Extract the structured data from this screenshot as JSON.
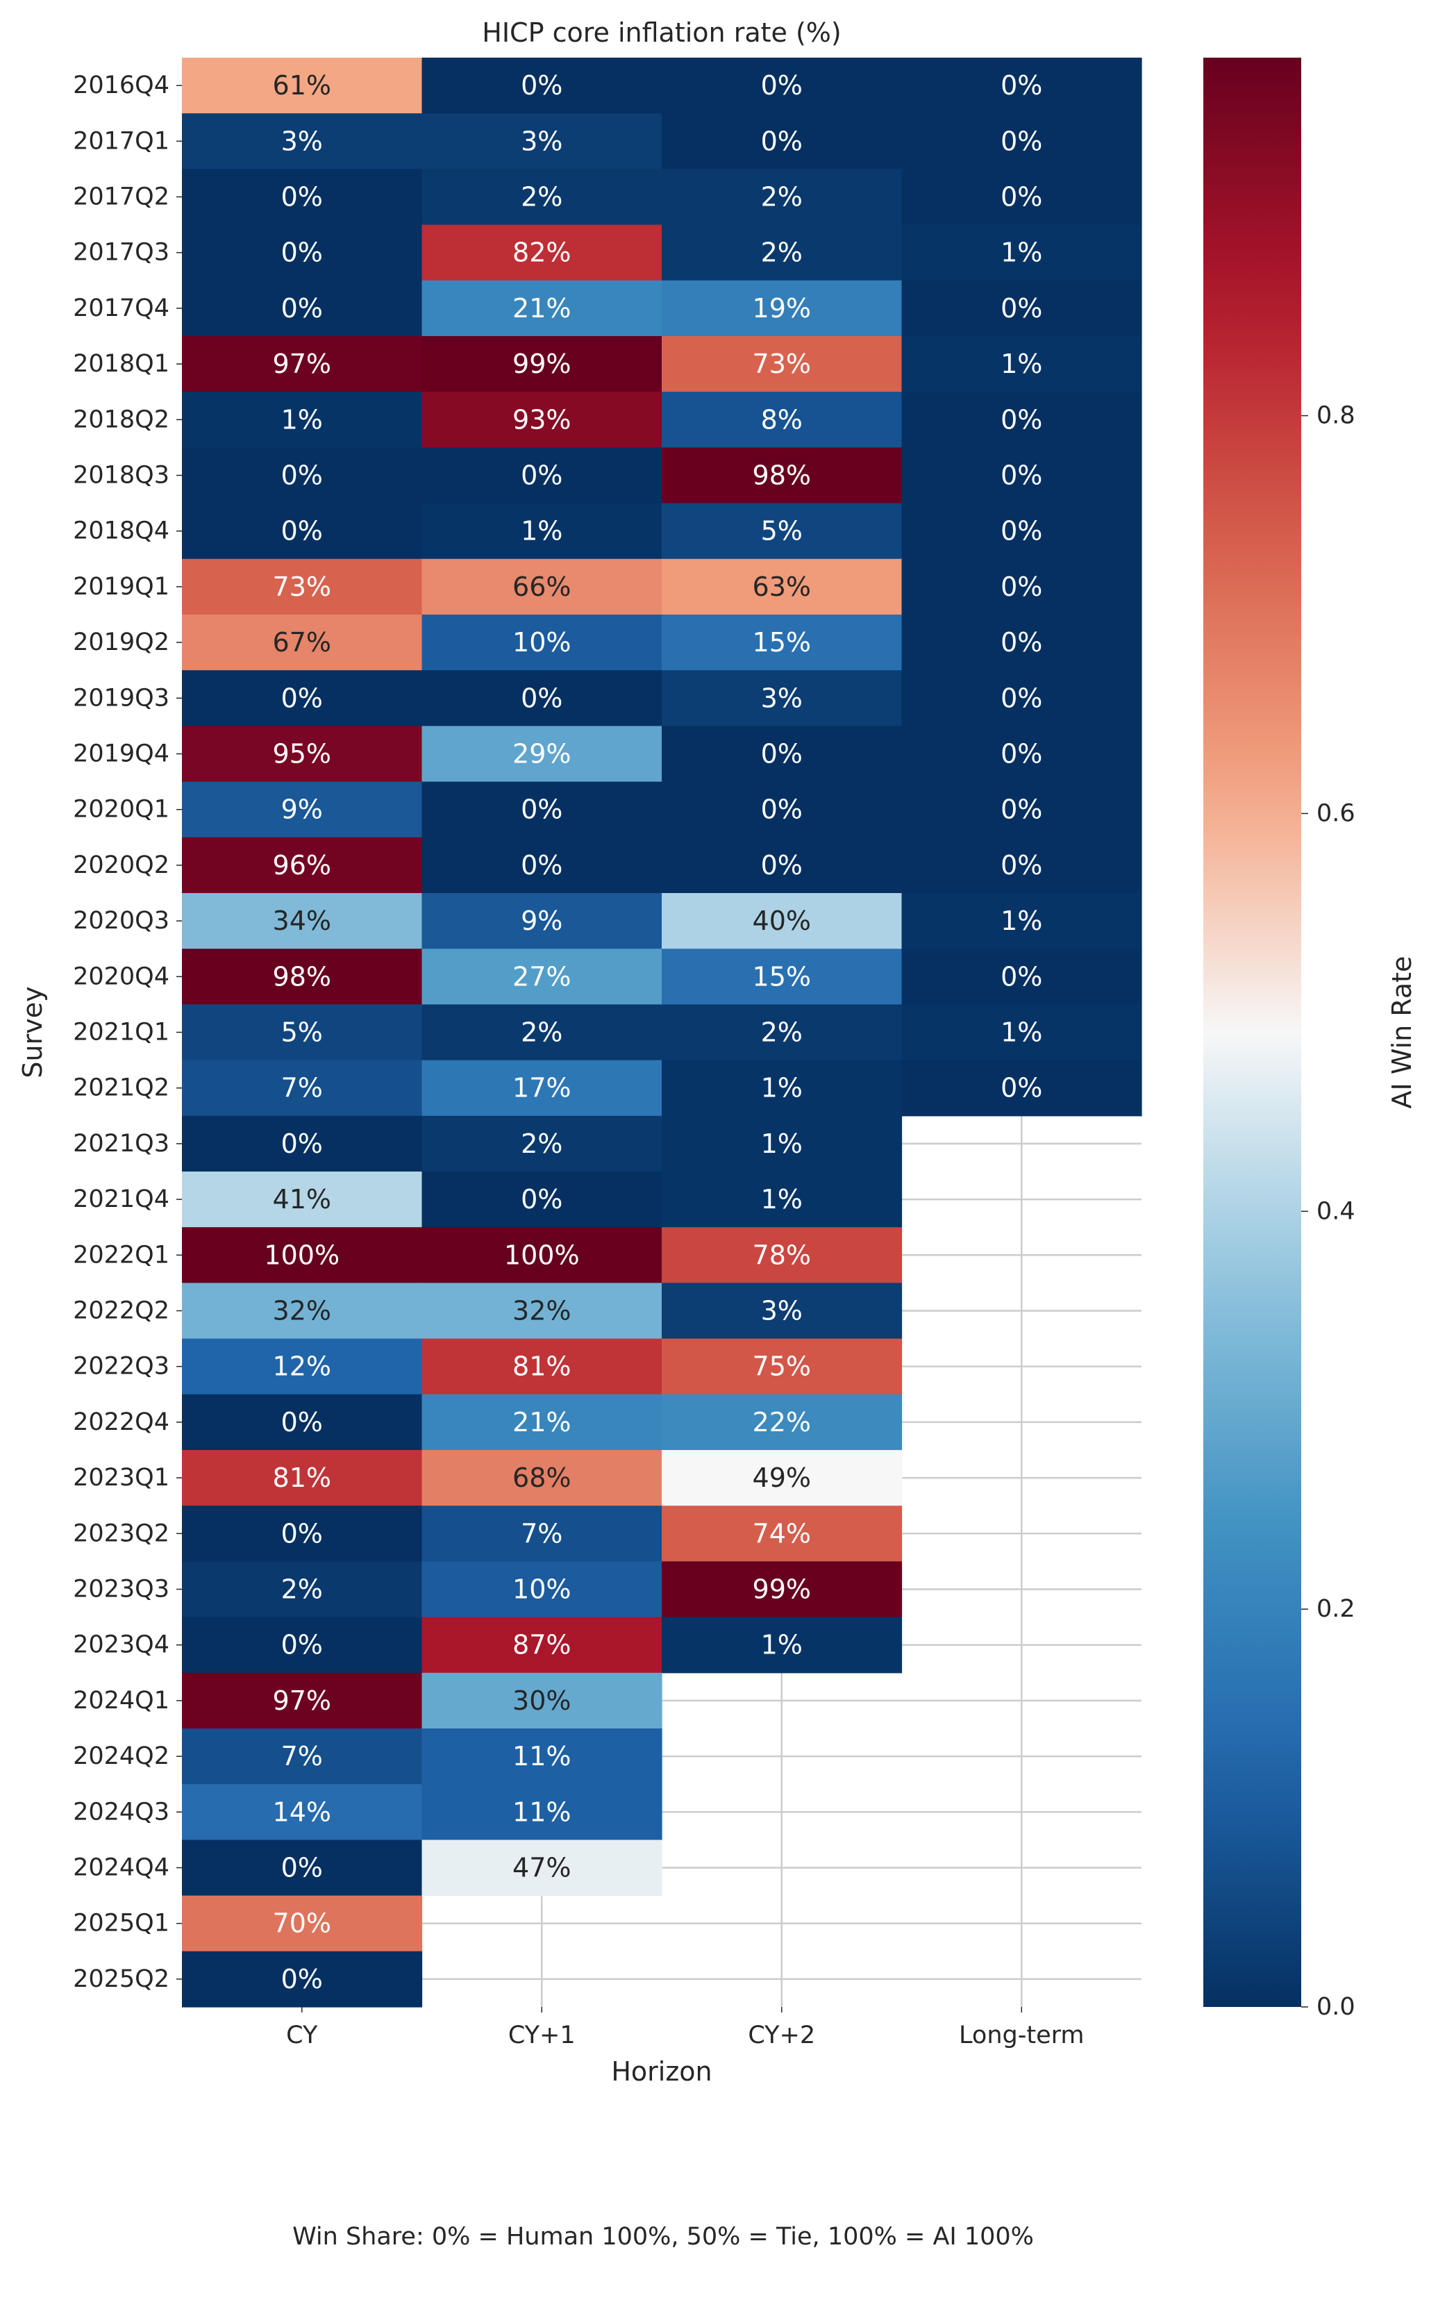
{
  "chart_data": {
    "type": "heatmap",
    "title": "HICP core inflation rate (%)",
    "xlabel": "Horizon",
    "ylabel": "Survey",
    "x_categories": [
      "CY",
      "CY+1",
      "CY+2",
      "Long-term"
    ],
    "y_categories": [
      "2016Q4",
      "2017Q1",
      "2017Q2",
      "2017Q3",
      "2017Q4",
      "2018Q1",
      "2018Q2",
      "2018Q3",
      "2018Q4",
      "2019Q1",
      "2019Q2",
      "2019Q3",
      "2019Q4",
      "2020Q1",
      "2020Q2",
      "2020Q3",
      "2020Q4",
      "2021Q1",
      "2021Q2",
      "2021Q3",
      "2021Q4",
      "2022Q1",
      "2022Q2",
      "2022Q3",
      "2022Q4",
      "2023Q1",
      "2023Q2",
      "2023Q3",
      "2023Q4",
      "2024Q1",
      "2024Q2",
      "2024Q3",
      "2024Q4",
      "2025Q1",
      "2025Q2"
    ],
    "values": [
      [
        0.61,
        0.0,
        0.0,
        0.0
      ],
      [
        0.03,
        0.03,
        0.0,
        0.0
      ],
      [
        0.0,
        0.02,
        0.02,
        0.0
      ],
      [
        0.0,
        0.82,
        0.02,
        0.01
      ],
      [
        0.0,
        0.21,
        0.19,
        0.0
      ],
      [
        0.97,
        0.99,
        0.73,
        0.01
      ],
      [
        0.01,
        0.93,
        0.08,
        0.0
      ],
      [
        0.0,
        0.0,
        0.98,
        0.0
      ],
      [
        0.0,
        0.01,
        0.05,
        0.0
      ],
      [
        0.73,
        0.66,
        0.63,
        0.0
      ],
      [
        0.67,
        0.1,
        0.15,
        0.0
      ],
      [
        0.0,
        0.0,
        0.03,
        0.0
      ],
      [
        0.95,
        0.29,
        0.0,
        0.0
      ],
      [
        0.09,
        0.0,
        0.0,
        0.0
      ],
      [
        0.96,
        0.0,
        0.0,
        0.0
      ],
      [
        0.34,
        0.09,
        0.4,
        0.01
      ],
      [
        0.98,
        0.27,
        0.15,
        0.0
      ],
      [
        0.05,
        0.02,
        0.02,
        0.01
      ],
      [
        0.07,
        0.17,
        0.01,
        0.0
      ],
      [
        0.0,
        0.02,
        0.01,
        null
      ],
      [
        0.41,
        0.0,
        0.01,
        null
      ],
      [
        1.0,
        1.0,
        0.78,
        null
      ],
      [
        0.32,
        0.32,
        0.03,
        null
      ],
      [
        0.12,
        0.81,
        0.75,
        null
      ],
      [
        0.0,
        0.21,
        0.22,
        null
      ],
      [
        0.81,
        0.68,
        0.49,
        null
      ],
      [
        0.0,
        0.07,
        0.74,
        null
      ],
      [
        0.02,
        0.1,
        0.99,
        null
      ],
      [
        0.0,
        0.87,
        0.01,
        null
      ],
      [
        0.97,
        0.3,
        null,
        null
      ],
      [
        0.07,
        0.11,
        null,
        null
      ],
      [
        0.14,
        0.11,
        null,
        null
      ],
      [
        0.0,
        0.47,
        null,
        null
      ],
      [
        0.7,
        null,
        null,
        null
      ],
      [
        0.0,
        null,
        null,
        null
      ]
    ],
    "labels": [
      [
        "61%",
        "0%",
        "0%",
        "0%"
      ],
      [
        "3%",
        "3%",
        "0%",
        "0%"
      ],
      [
        "0%",
        "2%",
        "2%",
        "0%"
      ],
      [
        "0%",
        "82%",
        "2%",
        "1%"
      ],
      [
        "0%",
        "21%",
        "19%",
        "0%"
      ],
      [
        "97%",
        "99%",
        "73%",
        "1%"
      ],
      [
        "1%",
        "93%",
        "8%",
        "0%"
      ],
      [
        "0%",
        "0%",
        "98%",
        "0%"
      ],
      [
        "0%",
        "1%",
        "5%",
        "0%"
      ],
      [
        "73%",
        "66%",
        "63%",
        "0%"
      ],
      [
        "67%",
        "10%",
        "15%",
        "0%"
      ],
      [
        "0%",
        "0%",
        "3%",
        "0%"
      ],
      [
        "95%",
        "29%",
        "0%",
        "0%"
      ],
      [
        "9%",
        "0%",
        "0%",
        "0%"
      ],
      [
        "96%",
        "0%",
        "0%",
        "0%"
      ],
      [
        "34%",
        "9%",
        "40%",
        "1%"
      ],
      [
        "98%",
        "27%",
        "15%",
        "0%"
      ],
      [
        "5%",
        "2%",
        "2%",
        "1%"
      ],
      [
        "7%",
        "17%",
        "1%",
        "0%"
      ],
      [
        "0%",
        "2%",
        "1%",
        null
      ],
      [
        "41%",
        "0%",
        "1%",
        null
      ],
      [
        "100%",
        "100%",
        "78%",
        null
      ],
      [
        "32%",
        "32%",
        "3%",
        null
      ],
      [
        "12%",
        "81%",
        "75%",
        null
      ],
      [
        "0%",
        "21%",
        "22%",
        null
      ],
      [
        "81%",
        "68%",
        "49%",
        null
      ],
      [
        "0%",
        "7%",
        "74%",
        null
      ],
      [
        "2%",
        "10%",
        "99%",
        null
      ],
      [
        "0%",
        "87%",
        "1%",
        null
      ],
      [
        "97%",
        "30%",
        null,
        null
      ],
      [
        "7%",
        "11%",
        null,
        null
      ],
      [
        "14%",
        "11%",
        null,
        null
      ],
      [
        "0%",
        "47%",
        null,
        null
      ],
      [
        "70%",
        null,
        null,
        null
      ],
      [
        "0%",
        null,
        null,
        null
      ]
    ],
    "colormap": "RdBu_r",
    "vmin": 0.0,
    "vmax": 0.98,
    "colorbar": {
      "label": "AI Win Rate",
      "ticks": [
        0.0,
        0.2,
        0.4,
        0.6,
        0.8
      ],
      "tick_labels": [
        "0.0",
        "0.2",
        "0.4",
        "0.6",
        "0.8"
      ]
    },
    "grid": true,
    "caption": "Win Share: 0% = Human 100%, 50% = Tie, 100% = AI 100%"
  }
}
